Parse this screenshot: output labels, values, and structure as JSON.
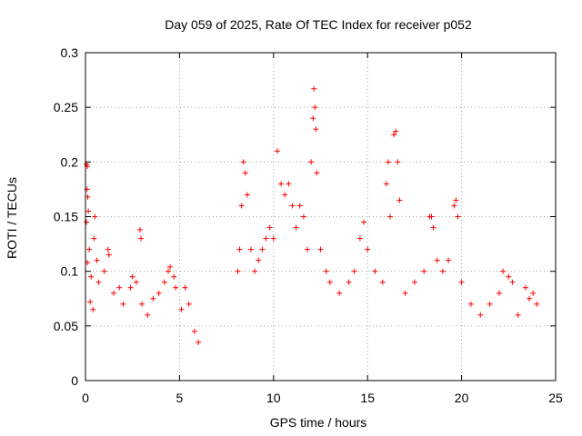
{
  "chart_data": {
    "type": "scatter",
    "title": "Day 059 of 2025, Rate Of TEC Index for receiver p052",
    "xlabel": "GPS time / hours",
    "ylabel": "ROTI / TECUs",
    "xlim": [
      0,
      25
    ],
    "ylim": [
      0,
      0.3
    ],
    "x_ticks": [
      0,
      5,
      10,
      15,
      20,
      25
    ],
    "x_tick_labels": [
      "0",
      "5",
      "10",
      "15",
      "20",
      "25"
    ],
    "y_ticks": [
      0,
      0.05,
      0.1,
      0.15,
      0.2,
      0.25,
      0.3
    ],
    "y_tick_labels": [
      "0",
      "0.05",
      "0.1",
      "0.15",
      "0.2",
      "0.25",
      "0.3"
    ],
    "grid": true,
    "marker": "plus",
    "color": "#ff0000",
    "series": [
      {
        "points": [
          [
            0.05,
            0.198
          ],
          [
            0.1,
            0.196
          ],
          [
            0.08,
            0.175
          ],
          [
            0.12,
            0.168
          ],
          [
            0.15,
            0.155
          ],
          [
            0.05,
            0.145
          ],
          [
            0.2,
            0.12
          ],
          [
            0.1,
            0.108
          ],
          [
            0.3,
            0.095
          ],
          [
            0.25,
            0.072
          ],
          [
            0.4,
            0.065
          ],
          [
            0.5,
            0.15
          ],
          [
            0.45,
            0.13
          ],
          [
            0.6,
            0.11
          ],
          [
            0.7,
            0.09
          ],
          [
            1.0,
            0.1
          ],
          [
            1.2,
            0.12
          ],
          [
            1.25,
            0.115
          ],
          [
            1.5,
            0.08
          ],
          [
            1.8,
            0.085
          ],
          [
            2.0,
            0.07
          ],
          [
            2.4,
            0.085
          ],
          [
            2.5,
            0.095
          ],
          [
            2.7,
            0.09
          ],
          [
            2.9,
            0.138
          ],
          [
            2.95,
            0.13
          ],
          [
            3.0,
            0.07
          ],
          [
            3.3,
            0.06
          ],
          [
            3.6,
            0.075
          ],
          [
            3.9,
            0.08
          ],
          [
            4.2,
            0.09
          ],
          [
            4.4,
            0.1
          ],
          [
            4.5,
            0.104
          ],
          [
            4.7,
            0.095
          ],
          [
            4.8,
            0.085
          ],
          [
            5.1,
            0.065
          ],
          [
            5.3,
            0.085
          ],
          [
            5.5,
            0.07
          ],
          [
            5.8,
            0.045
          ],
          [
            6.0,
            0.035
          ],
          [
            8.1,
            0.1
          ],
          [
            8.2,
            0.12
          ],
          [
            8.3,
            0.16
          ],
          [
            8.4,
            0.2
          ],
          [
            8.5,
            0.19
          ],
          [
            8.6,
            0.17
          ],
          [
            8.8,
            0.12
          ],
          [
            9.0,
            0.1
          ],
          [
            9.2,
            0.11
          ],
          [
            9.4,
            0.12
          ],
          [
            9.6,
            0.13
          ],
          [
            9.8,
            0.14
          ],
          [
            10.0,
            0.13
          ],
          [
            10.2,
            0.21
          ],
          [
            10.4,
            0.18
          ],
          [
            10.6,
            0.17
          ],
          [
            10.8,
            0.18
          ],
          [
            11.0,
            0.16
          ],
          [
            11.2,
            0.14
          ],
          [
            11.4,
            0.16
          ],
          [
            11.6,
            0.15
          ],
          [
            11.8,
            0.12
          ],
          [
            12.0,
            0.2
          ],
          [
            12.1,
            0.24
          ],
          [
            12.15,
            0.267
          ],
          [
            12.2,
            0.25
          ],
          [
            12.25,
            0.23
          ],
          [
            12.3,
            0.19
          ],
          [
            12.5,
            0.12
          ],
          [
            12.8,
            0.1
          ],
          [
            13.0,
            0.09
          ],
          [
            13.5,
            0.08
          ],
          [
            14.0,
            0.09
          ],
          [
            14.3,
            0.1
          ],
          [
            14.6,
            0.13
          ],
          [
            14.8,
            0.145
          ],
          [
            15.0,
            0.12
          ],
          [
            15.4,
            0.1
          ],
          [
            15.8,
            0.09
          ],
          [
            16.0,
            0.18
          ],
          [
            16.1,
            0.2
          ],
          [
            16.2,
            0.15
          ],
          [
            16.4,
            0.225
          ],
          [
            16.5,
            0.228
          ],
          [
            16.6,
            0.2
          ],
          [
            16.7,
            0.165
          ],
          [
            17.0,
            0.08
          ],
          [
            17.5,
            0.09
          ],
          [
            18.0,
            0.1
          ],
          [
            18.3,
            0.15
          ],
          [
            18.4,
            0.15
          ],
          [
            18.5,
            0.14
          ],
          [
            18.7,
            0.11
          ],
          [
            19.0,
            0.1
          ],
          [
            19.3,
            0.11
          ],
          [
            19.6,
            0.16
          ],
          [
            19.7,
            0.165
          ],
          [
            19.8,
            0.15
          ],
          [
            20.0,
            0.09
          ],
          [
            20.5,
            0.07
          ],
          [
            21.0,
            0.06
          ],
          [
            21.5,
            0.07
          ],
          [
            22.0,
            0.08
          ],
          [
            22.2,
            0.1
          ],
          [
            22.5,
            0.095
          ],
          [
            22.7,
            0.09
          ],
          [
            23.0,
            0.06
          ],
          [
            23.4,
            0.085
          ],
          [
            23.6,
            0.075
          ],
          [
            23.8,
            0.08
          ],
          [
            24.0,
            0.07
          ]
        ]
      }
    ]
  }
}
